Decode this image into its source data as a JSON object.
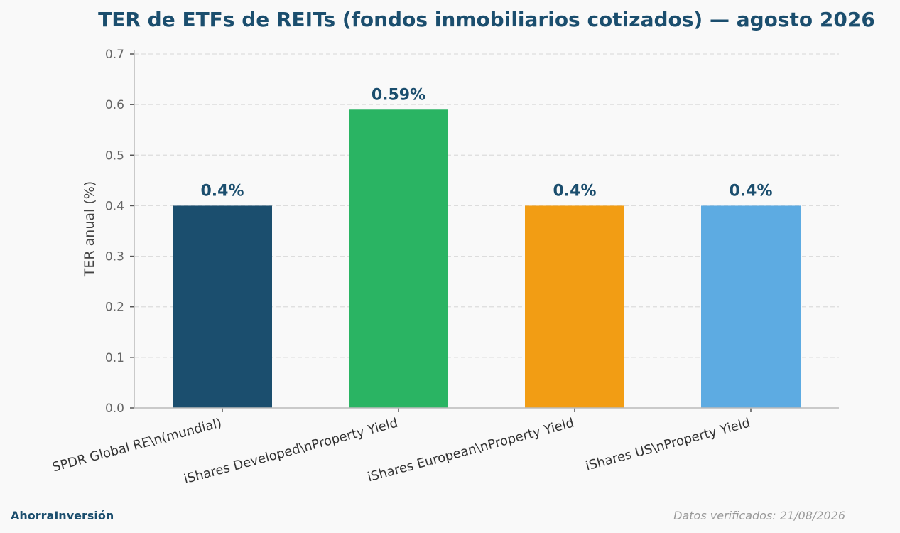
{
  "chart_data": {
    "type": "bar",
    "title": "TER de ETFs de REITs (fondos inmobiliarios cotizados) — agosto 2026",
    "ylabel": "TER anual (%)",
    "xlabel": "",
    "ylim": [
      0,
      0.7
    ],
    "yticks": [
      "0.0",
      "0.1",
      "0.2",
      "0.3",
      "0.4",
      "0.5",
      "0.6",
      "0.7"
    ],
    "grid": true,
    "categories": [
      "SPDR Global RE\\n(mundial)",
      "iShares Developed\\nProperty Yield",
      "iShares European\\nProperty Yield",
      "iShares US\\nProperty Yield"
    ],
    "values": [
      0.4,
      0.59,
      0.4,
      0.4
    ],
    "data_labels": [
      "0.4%",
      "0.59%",
      "0.4%",
      "0.4%"
    ],
    "colors": [
      "#1b4e6e",
      "#2ab463",
      "#f29d14",
      "#5dabe2"
    ]
  },
  "footer": {
    "brand": "AhorraInversión",
    "verified": "Datos verificados: 21/08/2026"
  }
}
